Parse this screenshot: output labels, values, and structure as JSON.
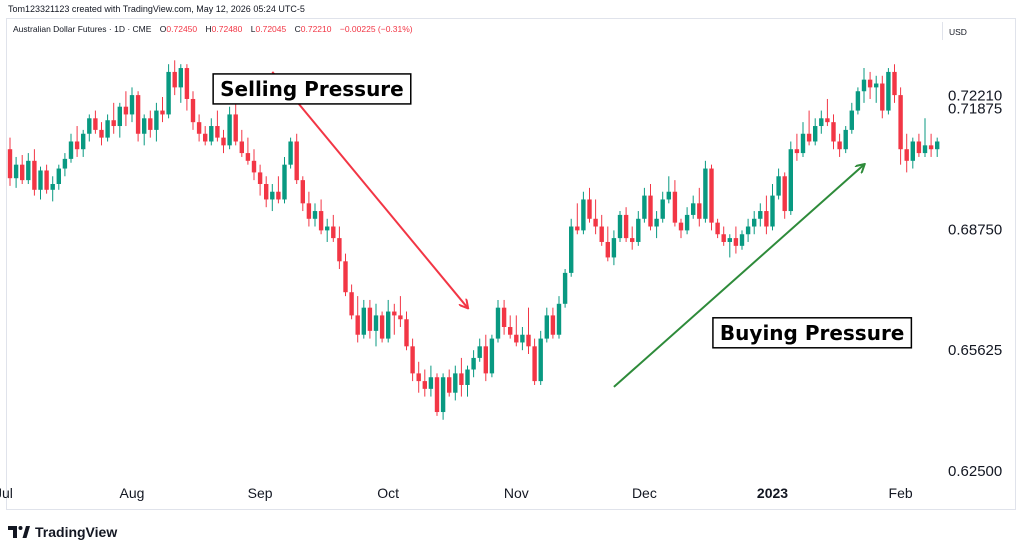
{
  "header": {
    "attribution": "Tom123321123 created with TradingView.com, May 12, 2026 05:24 UTC-5",
    "symbol": "Australian Dollar Futures · 1D · CME",
    "ohlc": {
      "o_label": "O",
      "o": "0.72450",
      "h_label": "H",
      "h": "0.72480",
      "l_label": "L",
      "l": "0.72045",
      "c_label": "C",
      "c": "0.72210",
      "change": "−0.00225 (−0.31%)"
    },
    "currency": "USD"
  },
  "footer": {
    "brand": "TradingView"
  },
  "chart_data": {
    "type": "candlestick",
    "price_axis": {
      "ylim": [
        0.625,
        0.736
      ],
      "ticks": [
        "0.62500",
        "0.65625",
        "0.68750",
        "0.71875"
      ],
      "last_price": "0.72210",
      "last_price_value": 0.7221
    },
    "time_axis": {
      "labels": [
        {
          "text": "Jul",
          "bold": false
        },
        {
          "text": "Aug",
          "bold": false
        },
        {
          "text": "Sep",
          "bold": false
        },
        {
          "text": "Oct",
          "bold": false
        },
        {
          "text": "Nov",
          "bold": false
        },
        {
          "text": "Dec",
          "bold": false
        },
        {
          "text": "2023",
          "bold": true
        },
        {
          "text": "Feb",
          "bold": false
        }
      ],
      "label_bar_index": [
        -1,
        20,
        41,
        62,
        83,
        104,
        125,
        146
      ]
    },
    "colors": {
      "up": "#089981",
      "down": "#f23645",
      "sell_arrow": "#f23645",
      "buy_arrow": "#2e8b3a"
    },
    "annotations": [
      {
        "text": "Selling Pressure",
        "from_bar": 43,
        "from_price": 0.728,
        "to_bar": 75,
        "to_price": 0.667,
        "color": "#f23645",
        "label_bar": 49.5,
        "label_price": 0.7236
      },
      {
        "text": "Buying Pressure",
        "from_bar": 99,
        "from_price": 0.6465,
        "to_bar": 140,
        "to_price": 0.704,
        "color": "#2e8b3a",
        "label_bar": 131.5,
        "label_price": 0.6605
      }
    ],
    "candles": [
      [
        0.708,
        0.711,
        0.6985,
        0.7005
      ],
      [
        0.7005,
        0.706,
        0.698,
        0.704
      ],
      [
        0.704,
        0.7065,
        0.699,
        0.7
      ],
      [
        0.7,
        0.707,
        0.699,
        0.705
      ],
      [
        0.705,
        0.708,
        0.696,
        0.6975
      ],
      [
        0.6975,
        0.7035,
        0.695,
        0.7025
      ],
      [
        0.7025,
        0.704,
        0.6965,
        0.6975
      ],
      [
        0.6975,
        0.701,
        0.6945,
        0.699
      ],
      [
        0.699,
        0.704,
        0.6975,
        0.703
      ],
      [
        0.703,
        0.707,
        0.701,
        0.7055
      ],
      [
        0.7055,
        0.712,
        0.7045,
        0.71
      ],
      [
        0.71,
        0.714,
        0.706,
        0.708
      ],
      [
        0.708,
        0.713,
        0.706,
        0.712
      ],
      [
        0.712,
        0.717,
        0.71,
        0.716
      ],
      [
        0.716,
        0.718,
        0.712,
        0.713
      ],
      [
        0.713,
        0.715,
        0.709,
        0.711
      ],
      [
        0.711,
        0.717,
        0.71,
        0.7155
      ],
      [
        0.7155,
        0.72,
        0.712,
        0.714
      ],
      [
        0.714,
        0.72,
        0.711,
        0.719
      ],
      [
        0.719,
        0.723,
        0.714,
        0.717
      ],
      [
        0.717,
        0.724,
        0.715,
        0.722
      ],
      [
        0.722,
        0.723,
        0.71,
        0.712
      ],
      [
        0.712,
        0.717,
        0.709,
        0.716
      ],
      [
        0.716,
        0.718,
        0.711,
        0.713
      ],
      [
        0.713,
        0.72,
        0.71,
        0.718
      ],
      [
        0.718,
        0.7215,
        0.715,
        0.717
      ],
      [
        0.717,
        0.73,
        0.716,
        0.728
      ],
      [
        0.728,
        0.731,
        0.722,
        0.724
      ],
      [
        0.724,
        0.73,
        0.72,
        0.729
      ],
      [
        0.729,
        0.73,
        0.718,
        0.721
      ],
      [
        0.721,
        0.723,
        0.713,
        0.715
      ],
      [
        0.715,
        0.717,
        0.71,
        0.712
      ],
      [
        0.712,
        0.714,
        0.709,
        0.71
      ],
      [
        0.71,
        0.716,
        0.709,
        0.714
      ],
      [
        0.714,
        0.718,
        0.71,
        0.711
      ],
      [
        0.711,
        0.713,
        0.707,
        0.709
      ],
      [
        0.709,
        0.719,
        0.708,
        0.717
      ],
      [
        0.717,
        0.72,
        0.709,
        0.71
      ],
      [
        0.71,
        0.713,
        0.706,
        0.707
      ],
      [
        0.707,
        0.711,
        0.704,
        0.705
      ],
      [
        0.705,
        0.708,
        0.7,
        0.702
      ],
      [
        0.702,
        0.704,
        0.696,
        0.699
      ],
      [
        0.699,
        0.701,
        0.693,
        0.695
      ],
      [
        0.695,
        0.699,
        0.692,
        0.697
      ],
      [
        0.697,
        0.701,
        0.694,
        0.695
      ],
      [
        0.695,
        0.706,
        0.694,
        0.704
      ],
      [
        0.704,
        0.711,
        0.703,
        0.71
      ],
      [
        0.71,
        0.712,
        0.699,
        0.7
      ],
      [
        0.7,
        0.701,
        0.692,
        0.694
      ],
      [
        0.694,
        0.697,
        0.688,
        0.69
      ],
      [
        0.69,
        0.694,
        0.688,
        0.692
      ],
      [
        0.692,
        0.695,
        0.686,
        0.687
      ],
      [
        0.687,
        0.69,
        0.684,
        0.688
      ],
      [
        0.688,
        0.691,
        0.684,
        0.685
      ],
      [
        0.685,
        0.688,
        0.677,
        0.679
      ],
      [
        0.679,
        0.681,
        0.67,
        0.671
      ],
      [
        0.671,
        0.673,
        0.664,
        0.665
      ],
      [
        0.665,
        0.67,
        0.658,
        0.66
      ],
      [
        0.66,
        0.669,
        0.659,
        0.667
      ],
      [
        0.667,
        0.669,
        0.659,
        0.661
      ],
      [
        0.661,
        0.668,
        0.657,
        0.665
      ],
      [
        0.665,
        0.666,
        0.658,
        0.659
      ],
      [
        0.659,
        0.669,
        0.658,
        0.666
      ],
      [
        0.666,
        0.668,
        0.66,
        0.665
      ],
      [
        0.665,
        0.67,
        0.662,
        0.664
      ],
      [
        0.664,
        0.666,
        0.656,
        0.657
      ],
      [
        0.657,
        0.659,
        0.648,
        0.65
      ],
      [
        0.65,
        0.653,
        0.645,
        0.648
      ],
      [
        0.648,
        0.651,
        0.644,
        0.646
      ],
      [
        0.646,
        0.652,
        0.644,
        0.649
      ],
      [
        0.649,
        0.65,
        0.639,
        0.64
      ],
      [
        0.64,
        0.65,
        0.638,
        0.649
      ],
      [
        0.649,
        0.651,
        0.644,
        0.645
      ],
      [
        0.645,
        0.652,
        0.643,
        0.65
      ],
      [
        0.65,
        0.654,
        0.644,
        0.647
      ],
      [
        0.647,
        0.652,
        0.644,
        0.651
      ],
      [
        0.651,
        0.656,
        0.649,
        0.654
      ],
      [
        0.654,
        0.659,
        0.653,
        0.657
      ],
      [
        0.657,
        0.66,
        0.648,
        0.65
      ],
      [
        0.65,
        0.66,
        0.649,
        0.659
      ],
      [
        0.659,
        0.669,
        0.658,
        0.667
      ],
      [
        0.667,
        0.669,
        0.66,
        0.662
      ],
      [
        0.662,
        0.665,
        0.659,
        0.66
      ],
      [
        0.66,
        0.665,
        0.657,
        0.658
      ],
      [
        0.658,
        0.662,
        0.656,
        0.66
      ],
      [
        0.66,
        0.667,
        0.655,
        0.657
      ],
      [
        0.657,
        0.659,
        0.647,
        0.648
      ],
      [
        0.648,
        0.661,
        0.647,
        0.659
      ],
      [
        0.659,
        0.667,
        0.658,
        0.665
      ],
      [
        0.665,
        0.667,
        0.659,
        0.66
      ],
      [
        0.66,
        0.67,
        0.659,
        0.668
      ],
      [
        0.668,
        0.677,
        0.667,
        0.676
      ],
      [
        0.676,
        0.69,
        0.675,
        0.688
      ],
      [
        0.688,
        0.694,
        0.686,
        0.687
      ],
      [
        0.687,
        0.697,
        0.686,
        0.695
      ],
      [
        0.695,
        0.698,
        0.689,
        0.69
      ],
      [
        0.69,
        0.695,
        0.686,
        0.688
      ],
      [
        0.688,
        0.691,
        0.683,
        0.684
      ],
      [
        0.684,
        0.688,
        0.679,
        0.68
      ],
      [
        0.68,
        0.687,
        0.678,
        0.685
      ],
      [
        0.685,
        0.692,
        0.684,
        0.691
      ],
      [
        0.691,
        0.693,
        0.684,
        0.685
      ],
      [
        0.685,
        0.688,
        0.682,
        0.684
      ],
      [
        0.684,
        0.692,
        0.683,
        0.69
      ],
      [
        0.69,
        0.698,
        0.689,
        0.696
      ],
      [
        0.696,
        0.699,
        0.687,
        0.688
      ],
      [
        0.688,
        0.692,
        0.685,
        0.69
      ],
      [
        0.69,
        0.697,
        0.689,
        0.695
      ],
      [
        0.695,
        0.701,
        0.694,
        0.697
      ],
      [
        0.697,
        0.7,
        0.688,
        0.689
      ],
      [
        0.689,
        0.69,
        0.685,
        0.687
      ],
      [
        0.687,
        0.693,
        0.686,
        0.691
      ],
      [
        0.691,
        0.696,
        0.69,
        0.694
      ],
      [
        0.694,
        0.698,
        0.688,
        0.69
      ],
      [
        0.69,
        0.705,
        0.689,
        0.703
      ],
      [
        0.703,
        0.704,
        0.687,
        0.689
      ],
      [
        0.689,
        0.69,
        0.685,
        0.686
      ],
      [
        0.686,
        0.688,
        0.683,
        0.684
      ],
      [
        0.684,
        0.686,
        0.68,
        0.685
      ],
      [
        0.685,
        0.688,
        0.681,
        0.683
      ],
      [
        0.683,
        0.687,
        0.682,
        0.686
      ],
      [
        0.686,
        0.69,
        0.684,
        0.688
      ],
      [
        0.688,
        0.692,
        0.686,
        0.69
      ],
      [
        0.69,
        0.694,
        0.688,
        0.692
      ],
      [
        0.692,
        0.696,
        0.686,
        0.688
      ],
      [
        0.688,
        0.699,
        0.687,
        0.696
      ],
      [
        0.696,
        0.703,
        0.695,
        0.701
      ],
      [
        0.701,
        0.702,
        0.69,
        0.692
      ],
      [
        0.692,
        0.71,
        0.691,
        0.708
      ],
      [
        0.708,
        0.712,
        0.705,
        0.707
      ],
      [
        0.707,
        0.715,
        0.706,
        0.712
      ],
      [
        0.712,
        0.718,
        0.709,
        0.71
      ],
      [
        0.71,
        0.716,
        0.709,
        0.714
      ],
      [
        0.714,
        0.718,
        0.712,
        0.716
      ],
      [
        0.716,
        0.721,
        0.714,
        0.715
      ],
      [
        0.715,
        0.717,
        0.708,
        0.71
      ],
      [
        0.71,
        0.712,
        0.706,
        0.708
      ],
      [
        0.708,
        0.714,
        0.707,
        0.713
      ],
      [
        0.713,
        0.72,
        0.712,
        0.718
      ],
      [
        0.718,
        0.724,
        0.717,
        0.723
      ],
      [
        0.723,
        0.729,
        0.72,
        0.726
      ],
      [
        0.726,
        0.728,
        0.721,
        0.724
      ],
      [
        0.724,
        0.727,
        0.72,
        0.725
      ],
      [
        0.725,
        0.727,
        0.716,
        0.718
      ],
      [
        0.718,
        0.729,
        0.717,
        0.728
      ],
      [
        0.728,
        0.73,
        0.72,
        0.722
      ],
      [
        0.722,
        0.724,
        0.704,
        0.708
      ],
      [
        0.708,
        0.712,
        0.702,
        0.705
      ],
      [
        0.705,
        0.711,
        0.703,
        0.71
      ],
      [
        0.71,
        0.712,
        0.706,
        0.707
      ],
      [
        0.707,
        0.716,
        0.706,
        0.709
      ],
      [
        0.709,
        0.712,
        0.706,
        0.708
      ],
      [
        0.708,
        0.711,
        0.706,
        0.71
      ]
    ]
  }
}
